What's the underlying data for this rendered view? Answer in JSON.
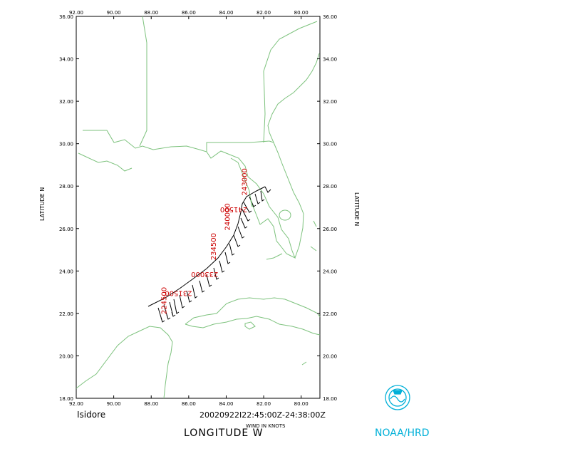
{
  "map": {
    "lon_range": [
      -92,
      -79
    ],
    "lat_range": [
      18,
      36
    ],
    "lon_ticks": [
      "92.00",
      "90.00",
      "88.00",
      "86.00",
      "84.00",
      "82.00",
      "80.00"
    ],
    "lat_ticks": [
      "36.00",
      "34.00",
      "32.00",
      "30.00",
      "28.00",
      "26.00",
      "24.00",
      "22.00",
      "20.00",
      "18.00"
    ],
    "colors": {
      "coast": "#7dc27d",
      "track": "#000000",
      "obs_label": "#cc0000",
      "logo": "#00b0d8"
    }
  },
  "labels": {
    "storm_name": "Isidore",
    "time_range": "20020922I22:45:00Z-24:38:00Z",
    "wind_units": "WIND IN KNOTS",
    "x_axis": "LONGITUDE   W",
    "y_axis_left": "LATITUDE   N",
    "y_axis_right": "LATITUDE   N",
    "agency": "NOAA/HRD"
  },
  "observation_times": [
    {
      "text": "224500",
      "lon": -87.2,
      "lat": 22.6,
      "rotate": -90
    },
    {
      "text": "231500",
      "lon": -86.55,
      "lat": 23.05,
      "rotate": 180
    },
    {
      "text": "233000",
      "lon": -85.15,
      "lat": 23.95,
      "rotate": 180
    },
    {
      "text": "234500",
      "lon": -84.55,
      "lat": 25.15,
      "rotate": -90
    },
    {
      "text": "240000",
      "lon": -83.8,
      "lat": 26.55,
      "rotate": -90
    },
    {
      "text": "241500",
      "lon": -83.6,
      "lat": 27.0,
      "rotate": 180
    },
    {
      "text": "243000",
      "lon": -82.9,
      "lat": 28.2,
      "rotate": -90
    }
  ]
}
